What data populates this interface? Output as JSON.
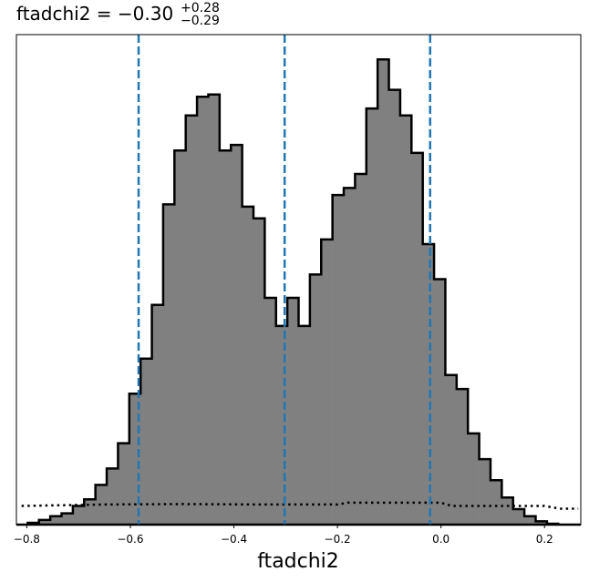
{
  "chart_data": {
    "type": "histogram",
    "title": {
      "main": "ftadchi2 = −0.30",
      "sup": "+0.28",
      "sub": "−0.29"
    },
    "xlabel": "ftadchi2",
    "ylabel": "",
    "xlim": [
      -0.82,
      0.27
    ],
    "ylim": [
      0,
      1.048
    ],
    "x_ticks": [
      -0.8,
      -0.6,
      -0.4,
      -0.2,
      0.0,
      0.2
    ],
    "x_tick_labels": [
      "−0.8",
      "−0.6",
      "−0.4",
      "−0.2",
      "0.0",
      "0.2"
    ],
    "y_ticks": [],
    "grid": false,
    "histogram": {
      "bin_start": -0.82,
      "bin_width": 0.0218,
      "fill": "#808080",
      "edge": "#000000",
      "counts": [
        0.0,
        0.004,
        0.01,
        0.018,
        0.024,
        0.04,
        0.054,
        0.085,
        0.12,
        0.174,
        0.28,
        0.355,
        0.47,
        0.685,
        0.8,
        0.875,
        0.915,
        0.92,
        0.8,
        0.812,
        0.68,
        0.655,
        0.485,
        0.425,
        0.485,
        0.425,
        0.535,
        0.61,
        0.705,
        0.72,
        0.75,
        0.89,
        0.995,
        0.93,
        0.875,
        0.795,
        0.6,
        0.525,
        0.32,
        0.29,
        0.195,
        0.14,
        0.095,
        0.058,
        0.033,
        0.018,
        0.007,
        0.002,
        0.0,
        0.0
      ]
    },
    "prior_line": {
      "style": "dotted",
      "color": "#000000",
      "x": [
        -0.81,
        -0.65,
        -0.5,
        -0.35,
        -0.2,
        -0.18,
        0.0,
        0.02,
        0.2,
        0.23,
        0.265
      ],
      "y": [
        0.04,
        0.043,
        0.044,
        0.043,
        0.043,
        0.047,
        0.047,
        0.04,
        0.04,
        0.034,
        0.034
      ]
    },
    "vlines": {
      "color": "#1f77b4",
      "style": "dashed",
      "x": [
        -0.584,
        -0.302,
        -0.021
      ]
    }
  }
}
